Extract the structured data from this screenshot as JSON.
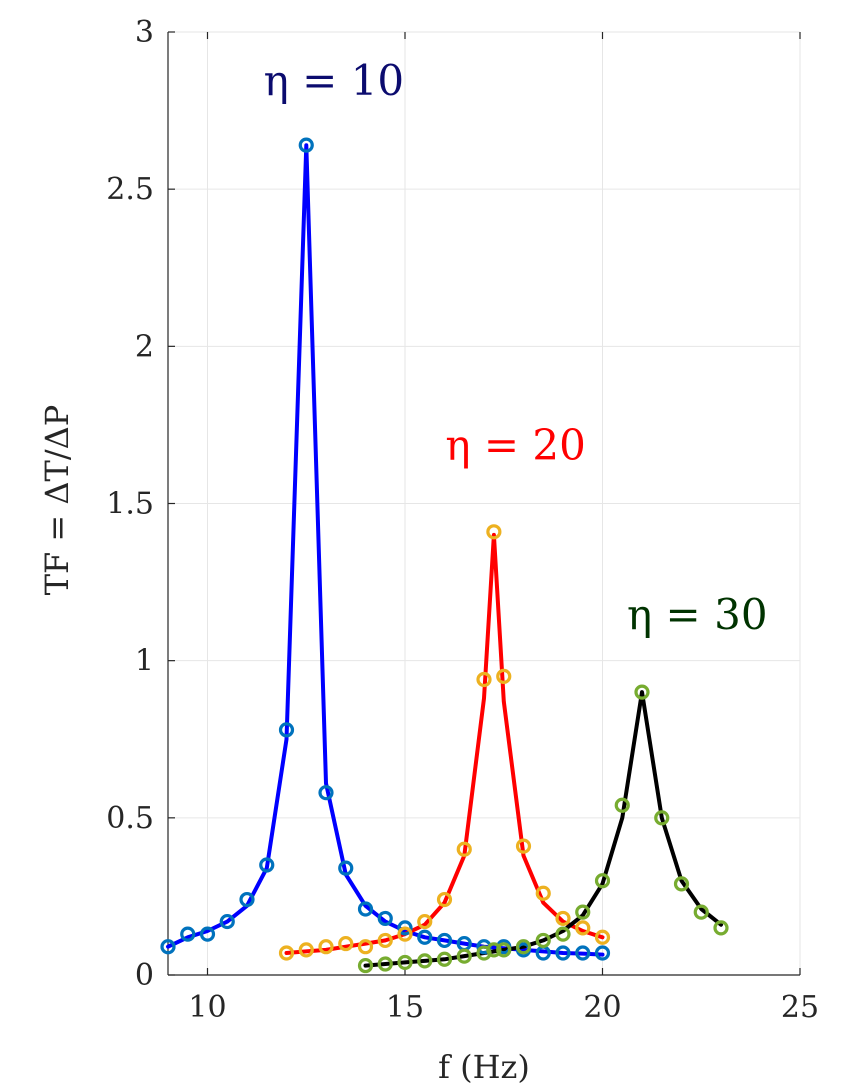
{
  "chart_data": {
    "type": "line",
    "xlabel": "f (Hz)",
    "ylabel": "TF = ΔT/ΔP",
    "xlim": [
      9,
      25
    ],
    "ylim": [
      0,
      3
    ],
    "xticks": [
      10,
      15,
      20,
      25
    ],
    "yticks": [
      0,
      0.5,
      1,
      1.5,
      2,
      2.5,
      3
    ],
    "ytick_labels": [
      "0",
      "0.5",
      "1",
      "1.5",
      "2",
      "2.5",
      "3"
    ],
    "grid": true,
    "annotations": [
      {
        "text": "η = 10",
        "color": "#0b0b6e",
        "anchor": [
          13.2,
          2.8
        ]
      },
      {
        "text": "η = 20",
        "color": "#ff0000",
        "anchor": [
          17.8,
          1.64
        ]
      },
      {
        "text": "η = 30",
        "color": "#003300",
        "anchor": [
          22.4,
          1.1
        ]
      }
    ],
    "series": [
      {
        "kind": "markers",
        "color": "#0072bd",
        "x": [
          9,
          9.5,
          10,
          10.5,
          11,
          11.5,
          12,
          12.5,
          13,
          13.5,
          14,
          14.5,
          15,
          15.5,
          16,
          16.5,
          17,
          17.5,
          18,
          18.5,
          19,
          19.5,
          20
        ],
        "y": [
          0.09,
          0.13,
          0.13,
          0.17,
          0.24,
          0.35,
          0.78,
          2.64,
          0.58,
          0.34,
          0.21,
          0.18,
          0.15,
          0.12,
          0.11,
          0.1,
          0.09,
          0.09,
          0.08,
          0.07,
          0.07,
          0.07,
          0.07
        ]
      },
      {
        "kind": "line",
        "color": "#0000ff",
        "x": [
          9,
          9.5,
          10,
          10.5,
          11,
          11.5,
          12,
          12.5,
          13,
          13.5,
          14,
          14.5,
          15,
          15.5,
          16,
          16.5,
          17,
          17.5,
          18,
          18.5,
          19,
          19.5,
          20
        ],
        "y": [
          0.09,
          0.12,
          0.14,
          0.17,
          0.22,
          0.34,
          0.75,
          2.64,
          0.61,
          0.32,
          0.22,
          0.17,
          0.14,
          0.12,
          0.11,
          0.1,
          0.09,
          0.085,
          0.08,
          0.075,
          0.07,
          0.068,
          0.065
        ]
      },
      {
        "kind": "markers",
        "color": "#edb120",
        "x": [
          12,
          12.5,
          13,
          13.5,
          14,
          14.5,
          15,
          15.5,
          16,
          16.5,
          17,
          17.25,
          17.5,
          18,
          18.5,
          19,
          19.5,
          20
        ],
        "y": [
          0.07,
          0.08,
          0.09,
          0.1,
          0.09,
          0.11,
          0.13,
          0.17,
          0.24,
          0.4,
          0.94,
          1.41,
          0.95,
          0.41,
          0.26,
          0.18,
          0.15,
          0.12
        ]
      },
      {
        "kind": "line",
        "color": "#ff0000",
        "x": [
          12,
          12.5,
          13,
          13.5,
          14,
          14.5,
          15,
          15.5,
          16,
          16.5,
          17,
          17.25,
          17.5,
          18,
          18.5,
          19,
          19.5,
          20
        ],
        "y": [
          0.07,
          0.075,
          0.08,
          0.09,
          0.1,
          0.11,
          0.13,
          0.16,
          0.23,
          0.38,
          0.88,
          1.4,
          0.87,
          0.38,
          0.23,
          0.17,
          0.14,
          0.12
        ]
      },
      {
        "kind": "markers",
        "color": "#77ac30",
        "x": [
          14,
          14.5,
          15,
          15.5,
          16,
          16.5,
          17,
          17.25,
          17.5,
          18,
          18.5,
          19,
          19.5,
          20,
          20.5,
          21,
          21.5,
          22,
          22.5,
          23
        ],
        "y": [
          0.03,
          0.035,
          0.04,
          0.045,
          0.05,
          0.06,
          0.07,
          0.08,
          0.08,
          0.09,
          0.11,
          0.13,
          0.2,
          0.3,
          0.54,
          0.9,
          0.5,
          0.29,
          0.2,
          0.15
        ]
      },
      {
        "kind": "line",
        "color": "#000000",
        "x": [
          14,
          14.5,
          15,
          15.5,
          16,
          16.5,
          17,
          17.5,
          18,
          18.5,
          19,
          19.5,
          20,
          20.5,
          21,
          21.5,
          22,
          22.5,
          23
        ],
        "y": [
          0.03,
          0.035,
          0.04,
          0.045,
          0.05,
          0.06,
          0.07,
          0.08,
          0.09,
          0.11,
          0.14,
          0.19,
          0.29,
          0.5,
          0.9,
          0.5,
          0.3,
          0.21,
          0.16
        ]
      }
    ]
  }
}
